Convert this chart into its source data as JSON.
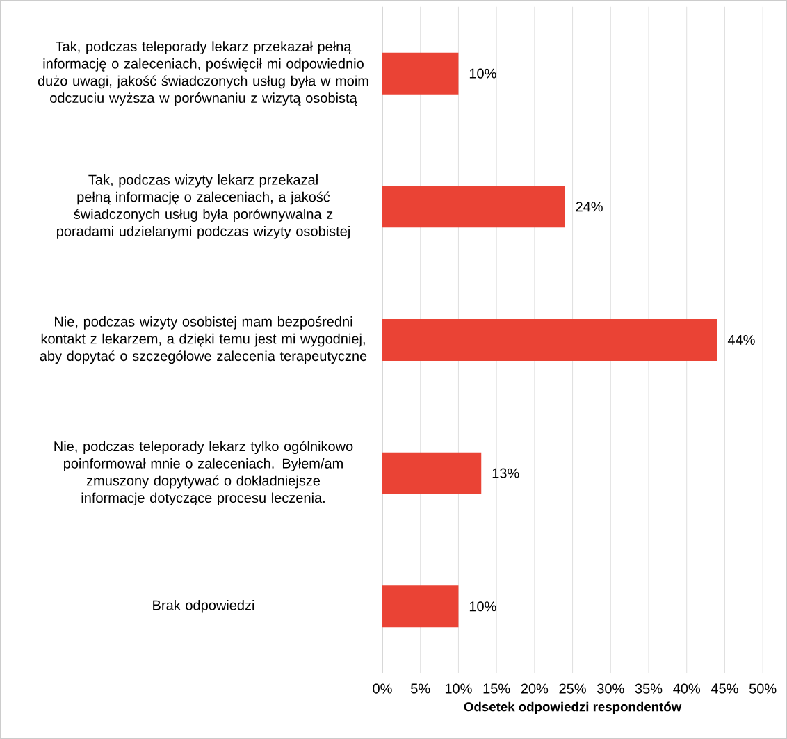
{
  "chart_data": {
    "type": "bar",
    "orientation": "horizontal",
    "xlabel": "Odsetek odpowiedzi respondentów",
    "categories": [
      "Tak, podczas teleporady lekarz przekazał pełną informację o zaleceniach, poświęcił mi odpowiednio dużo uwagi, jakość świadczonych usług była w moim odczuciu wyższa w porównaniu z wizytą osobistą",
      "Tak, podczas wizyty lekarz przekazał pełną informację o zaleceniach, a jakość świadczonych usług była porównywalna z poradami udzielanymi podczas wizyty osobistej",
      "Nie, podczas wizyty osobistej mam bezpośredni kontakt z lekarzem, a dzięki temu jest mi wygodniej, aby dopytać o szczegółowe zalecenia terapeutyczne",
      "Nie, podczas teleporady lekarz tylko ogólnikowo poinformował mnie o zaleceniach. Byłem/am zmuszony dopytywać o dokładniejsze informacje dotyczące procesu leczenia.",
      "Brak odpowiedzi"
    ],
    "values": [
      10,
      24,
      44,
      13,
      10
    ],
    "value_labels": [
      "10%",
      "24%",
      "44%",
      "13%",
      "10%"
    ],
    "color": "#ea4335",
    "xlim": [
      0,
      50
    ],
    "xticks": [
      {
        "value": 0,
        "label": "0%"
      },
      {
        "value": 5,
        "label": "5%"
      },
      {
        "value": 10,
        "label": "10%"
      },
      {
        "value": 15,
        "label": "15%"
      },
      {
        "value": 20,
        "label": "20%"
      },
      {
        "value": 25,
        "label": "25%"
      },
      {
        "value": 30,
        "label": "30%"
      },
      {
        "value": 35,
        "label": "35%"
      },
      {
        "value": 40,
        "label": "40%"
      },
      {
        "value": 45,
        "label": "45%"
      },
      {
        "value": 50,
        "label": "50%"
      }
    ],
    "grid": "x"
  }
}
